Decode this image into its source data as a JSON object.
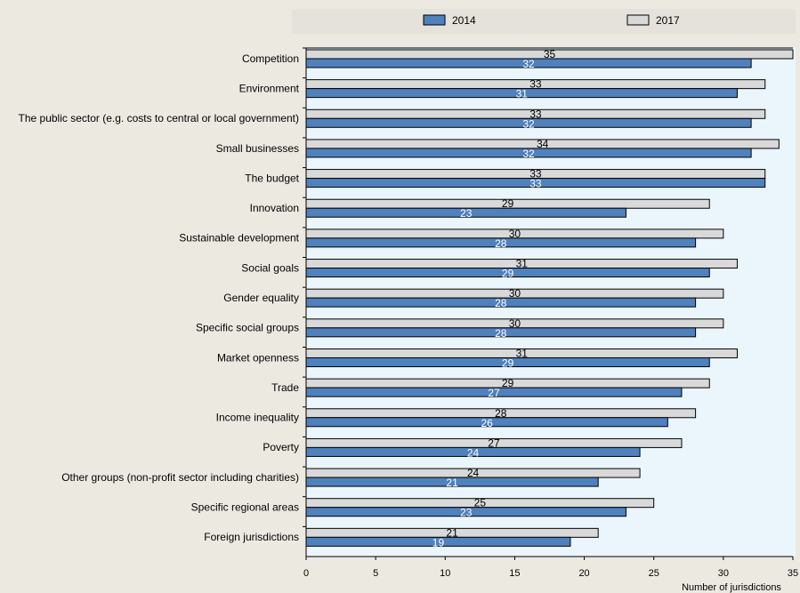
{
  "colors": {
    "series_2014": "#4F81BD",
    "series_2017": "#D9D9D9",
    "plot_background": "#EAF6FB",
    "page_background": "#ECE9E1",
    "legend_background": "#E4E2DA"
  },
  "chart_data": {
    "type": "bar",
    "orientation": "horizontal",
    "categories": [
      "Competition",
      "Environment",
      "The public sector (e.g. costs to central or local government)",
      "Small businesses",
      "The budget",
      "Innovation",
      "Sustainable development",
      "Social goals",
      "Gender equality",
      "Specific social groups",
      "Market openness",
      "Trade",
      "Income inequality",
      "Poverty",
      "Other groups (non-profit sector including charities)",
      "Specific regional areas",
      "Foreign jurisdictions"
    ],
    "series": [
      {
        "name": "2014",
        "values": [
          32,
          31,
          32,
          32,
          33,
          23,
          28,
          29,
          28,
          28,
          29,
          27,
          26,
          24,
          21,
          23,
          19
        ]
      },
      {
        "name": "2017",
        "values": [
          35,
          33,
          33,
          34,
          33,
          29,
          30,
          31,
          30,
          30,
          31,
          29,
          28,
          27,
          24,
          25,
          21
        ]
      }
    ],
    "xlabel": "Number of jurisdictions",
    "xlim": [
      0,
      35
    ],
    "xticks": [
      0,
      5,
      10,
      15,
      20,
      25,
      30,
      35
    ],
    "legend_placement": "top",
    "grid": false
  }
}
